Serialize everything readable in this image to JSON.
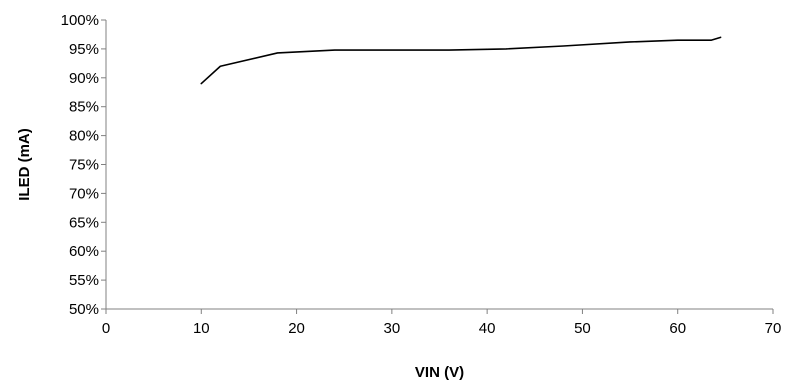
{
  "chart_data": {
    "type": "line",
    "title": "",
    "xlabel": "VIN (V)",
    "ylabel": "ILED (mA)",
    "xlim": [
      0,
      70
    ],
    "ylim": [
      50,
      100
    ],
    "x_ticks": [
      0,
      10,
      20,
      30,
      40,
      50,
      60,
      70
    ],
    "y_ticks": [
      50,
      55,
      60,
      65,
      70,
      75,
      80,
      85,
      90,
      95,
      100
    ],
    "y_tick_labels": [
      "50%",
      "55%",
      "60%",
      "65%",
      "70%",
      "75%",
      "80%",
      "85%",
      "90%",
      "95%",
      "100%"
    ],
    "grid": false,
    "legend": "none",
    "series": [
      {
        "color": "#000000",
        "points": [
          {
            "x": 10,
            "y": 89.0
          },
          {
            "x": 12,
            "y": 92.0
          },
          {
            "x": 18,
            "y": 94.3
          },
          {
            "x": 24,
            "y": 94.8
          },
          {
            "x": 30,
            "y": 94.8
          },
          {
            "x": 36,
            "y": 94.8
          },
          {
            "x": 42,
            "y": 95.0
          },
          {
            "x": 48,
            "y": 95.5
          },
          {
            "x": 55,
            "y": 96.2
          },
          {
            "x": 60,
            "y": 96.5
          },
          {
            "x": 63.5,
            "y": 96.5
          },
          {
            "x": 64.5,
            "y": 97.0
          }
        ]
      }
    ]
  }
}
